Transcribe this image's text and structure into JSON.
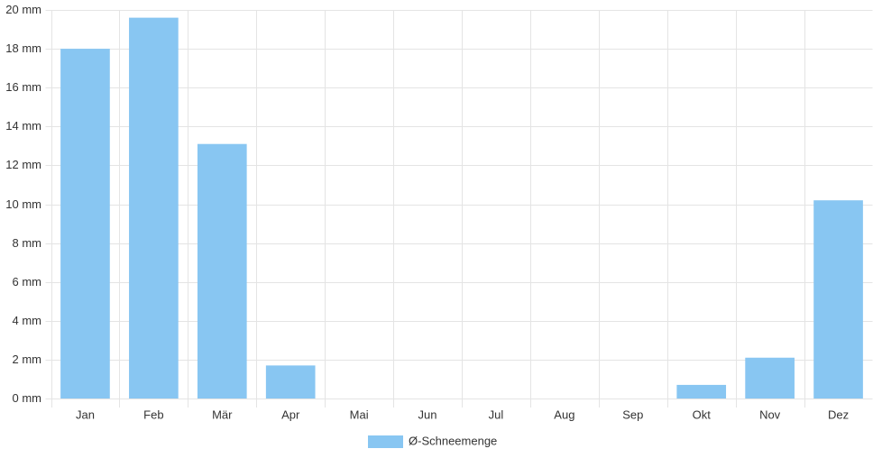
{
  "chart_data": {
    "type": "bar",
    "categories": [
      "Jan",
      "Feb",
      "Mär",
      "Apr",
      "Mai",
      "Jun",
      "Jul",
      "Aug",
      "Sep",
      "Okt",
      "Nov",
      "Dez"
    ],
    "series": [
      {
        "name": "Ø-Schneemenge",
        "color": "#88c6f2",
        "values": [
          18,
          19.6,
          13.1,
          1.7,
          0,
          0,
          0,
          0,
          0,
          0.7,
          2.1,
          10.2
        ]
      }
    ],
    "ylim": [
      0,
      20
    ],
    "yticks": [
      {
        "value": 0,
        "label": "0 mm"
      },
      {
        "value": 2,
        "label": "2 mm"
      },
      {
        "value": 4,
        "label": "4 mm"
      },
      {
        "value": 6,
        "label": "6 mm"
      },
      {
        "value": 8,
        "label": "8 mm"
      },
      {
        "value": 10,
        "label": "10 mm"
      },
      {
        "value": 12,
        "label": "12 mm"
      },
      {
        "value": 14,
        "label": "14 mm"
      },
      {
        "value": 16,
        "label": "16 mm"
      },
      {
        "value": 18,
        "label": "18 mm"
      },
      {
        "value": 20,
        "label": "20 mm"
      }
    ],
    "grid": true,
    "legend": "bottom"
  }
}
